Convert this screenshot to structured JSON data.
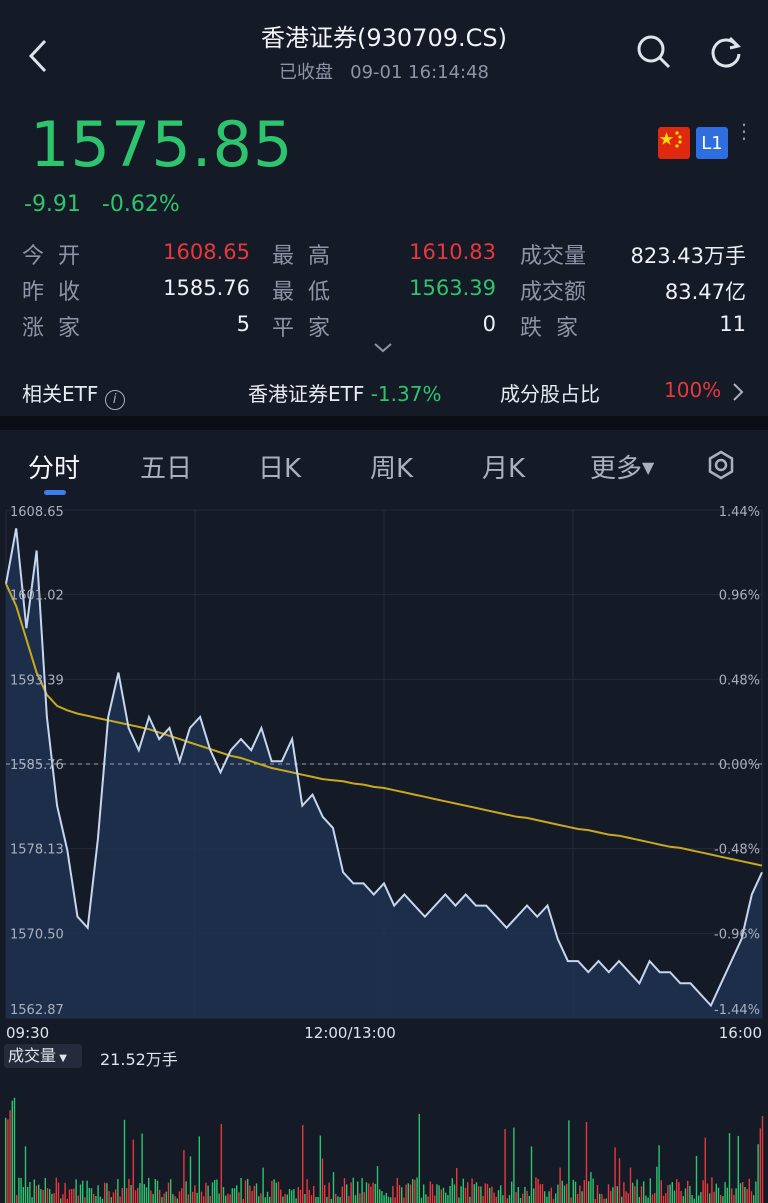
{
  "header": {
    "title": "香港证券(930709.CS)",
    "status": "已收盘",
    "datetime": "09-01 16:14:48"
  },
  "quote": {
    "price": "1575.85",
    "change": "-9.91",
    "change_pct": "-0.62%",
    "level_badge": "L1"
  },
  "stats": {
    "open_label": "今开",
    "open": "1608.65",
    "high_label": "最高",
    "high": "1610.83",
    "volume_label": "成交量",
    "volume": "823.43万手",
    "prev_close_label": "昨收",
    "prev_close": "1585.76",
    "low_label": "最低",
    "low": "1563.39",
    "amount_label": "成交额",
    "amount": "83.47亿",
    "up_label": "涨家",
    "up": "5",
    "flat_label": "平家",
    "flat": "0",
    "down_label": "跌家",
    "down": "11"
  },
  "etf_row": {
    "related_label": "相关ETF",
    "etf_name": "香港证券ETF",
    "etf_change": "-1.37%",
    "component_label": "成分股占比",
    "component_value": "100%"
  },
  "tabs": [
    {
      "label": "分时"
    },
    {
      "label": "五日"
    },
    {
      "label": "日K"
    },
    {
      "label": "周K"
    },
    {
      "label": "月K"
    },
    {
      "label": "更多"
    }
  ],
  "colors": {
    "up": "#e8383d",
    "down": "#2ec46e",
    "price_line": "#c6d6ee",
    "avg_line": "#c8a81e",
    "accent": "#3f7cf0"
  },
  "chart_data": {
    "type": "line",
    "y_left_ticks": [
      "1608.65",
      "1601.02",
      "1593.39",
      "1585.76",
      "1578.13",
      "1570.50",
      "1562.87"
    ],
    "y_right_ticks": [
      "1.44%",
      "0.96%",
      "0.48%",
      "0.00%",
      "-0.48%",
      "-0.96%",
      "-1.44%"
    ],
    "x_ticks": [
      "09:30",
      "12:00/13:00",
      "16:00"
    ],
    "ylim": [
      1562.87,
      1608.65
    ],
    "baseline": 1585.76,
    "price_series": [
      1602,
      1607,
      1598,
      1605,
      1590,
      1582,
      1578,
      1572,
      1571,
      1579,
      1590,
      1594,
      1589,
      1587,
      1590,
      1588,
      1589,
      1586,
      1589,
      1590,
      1587,
      1585,
      1587,
      1588,
      1587,
      1589,
      1586,
      1586,
      1588,
      1582,
      1583,
      1581,
      1580,
      1576,
      1575,
      1575,
      1574,
      1575,
      1573,
      1574,
      1573,
      1572,
      1573,
      1574,
      1573,
      1574,
      1573,
      1573,
      1572,
      1571,
      1572,
      1573,
      1572,
      1573,
      1570,
      1568,
      1568,
      1567,
      1568,
      1567,
      1568,
      1567,
      1566,
      1568,
      1567,
      1567,
      1566,
      1566,
      1565,
      1564,
      1566,
      1568,
      1570,
      1574,
      1576
    ],
    "avg_series": [
      1602,
      1600,
      1597,
      1594,
      1592,
      1591,
      1590.6,
      1590.3,
      1590.1,
      1589.9,
      1589.7,
      1589.5,
      1589.3,
      1589.1,
      1588.9,
      1588.6,
      1588.3,
      1588.0,
      1587.7,
      1587.4,
      1587.1,
      1586.8,
      1586.5,
      1586.3,
      1586.0,
      1585.7,
      1585.4,
      1585.2,
      1585.0,
      1584.8,
      1584.6,
      1584.4,
      1584.3,
      1584.2,
      1584.0,
      1583.9,
      1583.7,
      1583.6,
      1583.4,
      1583.2,
      1583.0,
      1582.8,
      1582.6,
      1582.4,
      1582.2,
      1582.0,
      1581.8,
      1581.6,
      1581.4,
      1581.2,
      1581.0,
      1580.9,
      1580.7,
      1580.5,
      1580.3,
      1580.1,
      1579.9,
      1579.8,
      1579.6,
      1579.4,
      1579.3,
      1579.1,
      1578.9,
      1578.7,
      1578.5,
      1578.3,
      1578.2,
      1578.0,
      1577.8,
      1577.6,
      1577.4,
      1577.2,
      1577.0,
      1576.8,
      1576.6
    ]
  },
  "volume": {
    "label": "成交量",
    "value": "21.52万手"
  }
}
